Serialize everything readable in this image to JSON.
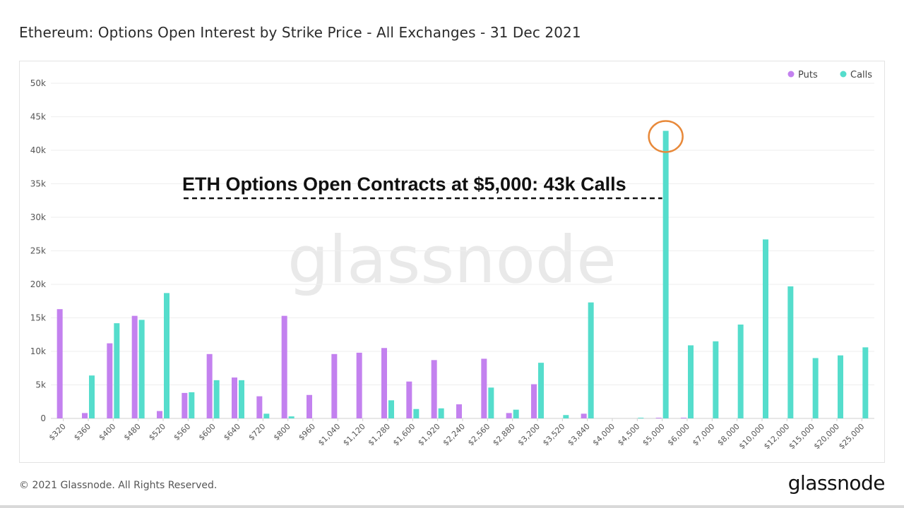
{
  "page": {
    "footer": "© 2021 Glassnode. All Rights Reserved.",
    "brand": "glassnode",
    "watermark": "glassnode",
    "annotation": "ETH Options Open Contracts at $5,000: 43k Calls"
  },
  "colors": {
    "puts": "#c381ef",
    "calls": "#55ddcc",
    "highlight": "#e8893a",
    "grid": "#eeeeee",
    "axis_text": "#555555"
  },
  "chart_data": {
    "type": "bar",
    "title": "Ethereum: Options Open Interest by Strike Price - All Exchanges - 31 Dec 2021",
    "legend_position": "top-right",
    "grid": true,
    "ylim": [
      0,
      50000
    ],
    "yticks": [
      "0",
      "5k",
      "10k",
      "15k",
      "20k",
      "25k",
      "30k",
      "35k",
      "40k",
      "45k",
      "50k"
    ],
    "yticks_values": [
      0,
      5000,
      10000,
      15000,
      20000,
      25000,
      30000,
      35000,
      40000,
      45000,
      50000
    ],
    "categories": [
      "$320",
      "$360",
      "$400",
      "$480",
      "$520",
      "$560",
      "$600",
      "$640",
      "$720",
      "$800",
      "$960",
      "$1,040",
      "$1,120",
      "$1,280",
      "$1,600",
      "$1,920",
      "$2,240",
      "$2,560",
      "$2,880",
      "$3,200",
      "$3,520",
      "$3,840",
      "$4,000",
      "$4,500",
      "$5,000",
      "$6,000",
      "$7,000",
      "$8,000",
      "$10,000",
      "$12,000",
      "$15,000",
      "$20,000",
      "$25,000"
    ],
    "series": [
      {
        "name": "Puts",
        "values": [
          16300,
          800,
          11200,
          15300,
          1100,
          3800,
          9600,
          6100,
          3300,
          15300,
          3500,
          9600,
          9800,
          10500,
          5500,
          8700,
          2100,
          8900,
          800,
          5100,
          0,
          700,
          0,
          0,
          100,
          100,
          0,
          0,
          0,
          0,
          0,
          0,
          0
        ]
      },
      {
        "name": "Calls",
        "values": [
          0,
          6400,
          14200,
          14700,
          18700,
          3900,
          5700,
          5700,
          700,
          300,
          0,
          0,
          0,
          2700,
          1400,
          1500,
          0,
          4600,
          1300,
          8300,
          500,
          17300,
          0,
          100,
          42900,
          10900,
          11500,
          14000,
          26700,
          19700,
          9000,
          9400,
          10600
        ]
      }
    ],
    "highlight_category": "$5,000"
  }
}
